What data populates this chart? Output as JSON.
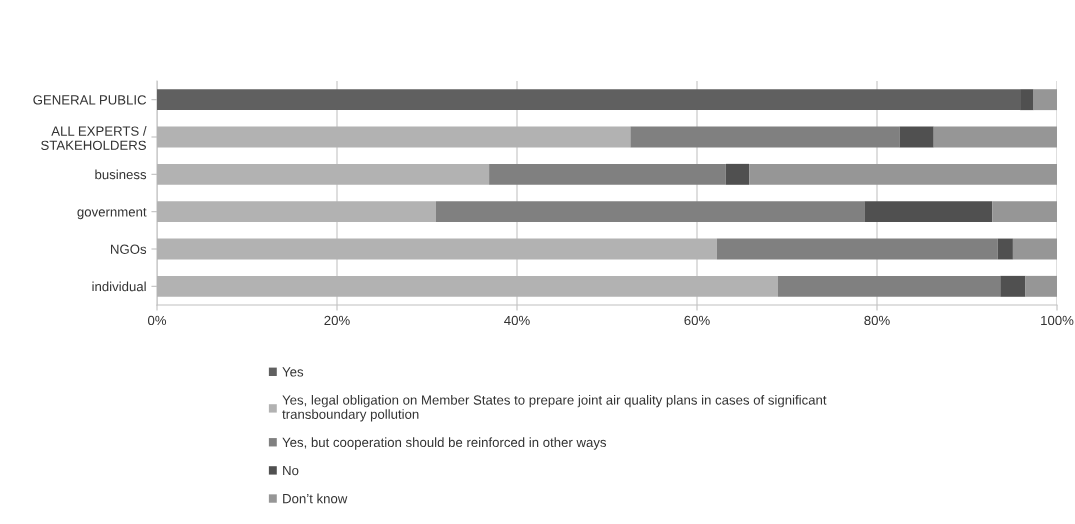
{
  "chart_data": {
    "type": "bar",
    "orientation": "horizontal",
    "stacked": true,
    "categories": [
      "GENERAL PUBLIC",
      "ALL EXPERTS /\nSTAKEHOLDERS",
      "business",
      "government",
      "NGOs",
      "individual"
    ],
    "series": [
      {
        "name": "Yes",
        "color": "#606060",
        "values": [
          95.9,
          null,
          null,
          null,
          null,
          null
        ]
      },
      {
        "name": "Yes, legal obligation on Member States to prepare joint air quality plans in cases of significant\ntransboundary pollution",
        "color": "#b2b2b2",
        "values": [
          null,
          52.6,
          36.9,
          31.0,
          62.2,
          69.0
        ]
      },
      {
        "name": "Yes, but cooperation should be reinforced in other ways",
        "color": "#808080",
        "values": [
          null,
          29.9,
          26.3,
          47.6,
          31.2,
          24.7
        ]
      },
      {
        "name": "No",
        "color": "#505050",
        "values": [
          1.5,
          3.8,
          2.6,
          14.2,
          1.7,
          2.8
        ]
      },
      {
        "name": "Don’t know",
        "color": "#969696",
        "values": [
          2.6,
          13.7,
          34.2,
          7.2,
          4.9,
          3.5
        ]
      }
    ],
    "xlim": [
      0,
      100
    ],
    "xticks": [
      {
        "value": 0,
        "label": "0%"
      },
      {
        "value": 20,
        "label": "20%"
      },
      {
        "value": 40,
        "label": "40%"
      },
      {
        "value": 60,
        "label": "60%"
      },
      {
        "value": 80,
        "label": "80%"
      },
      {
        "value": 100,
        "label": "100%"
      }
    ],
    "grid": "x",
    "legend": "bottom"
  }
}
